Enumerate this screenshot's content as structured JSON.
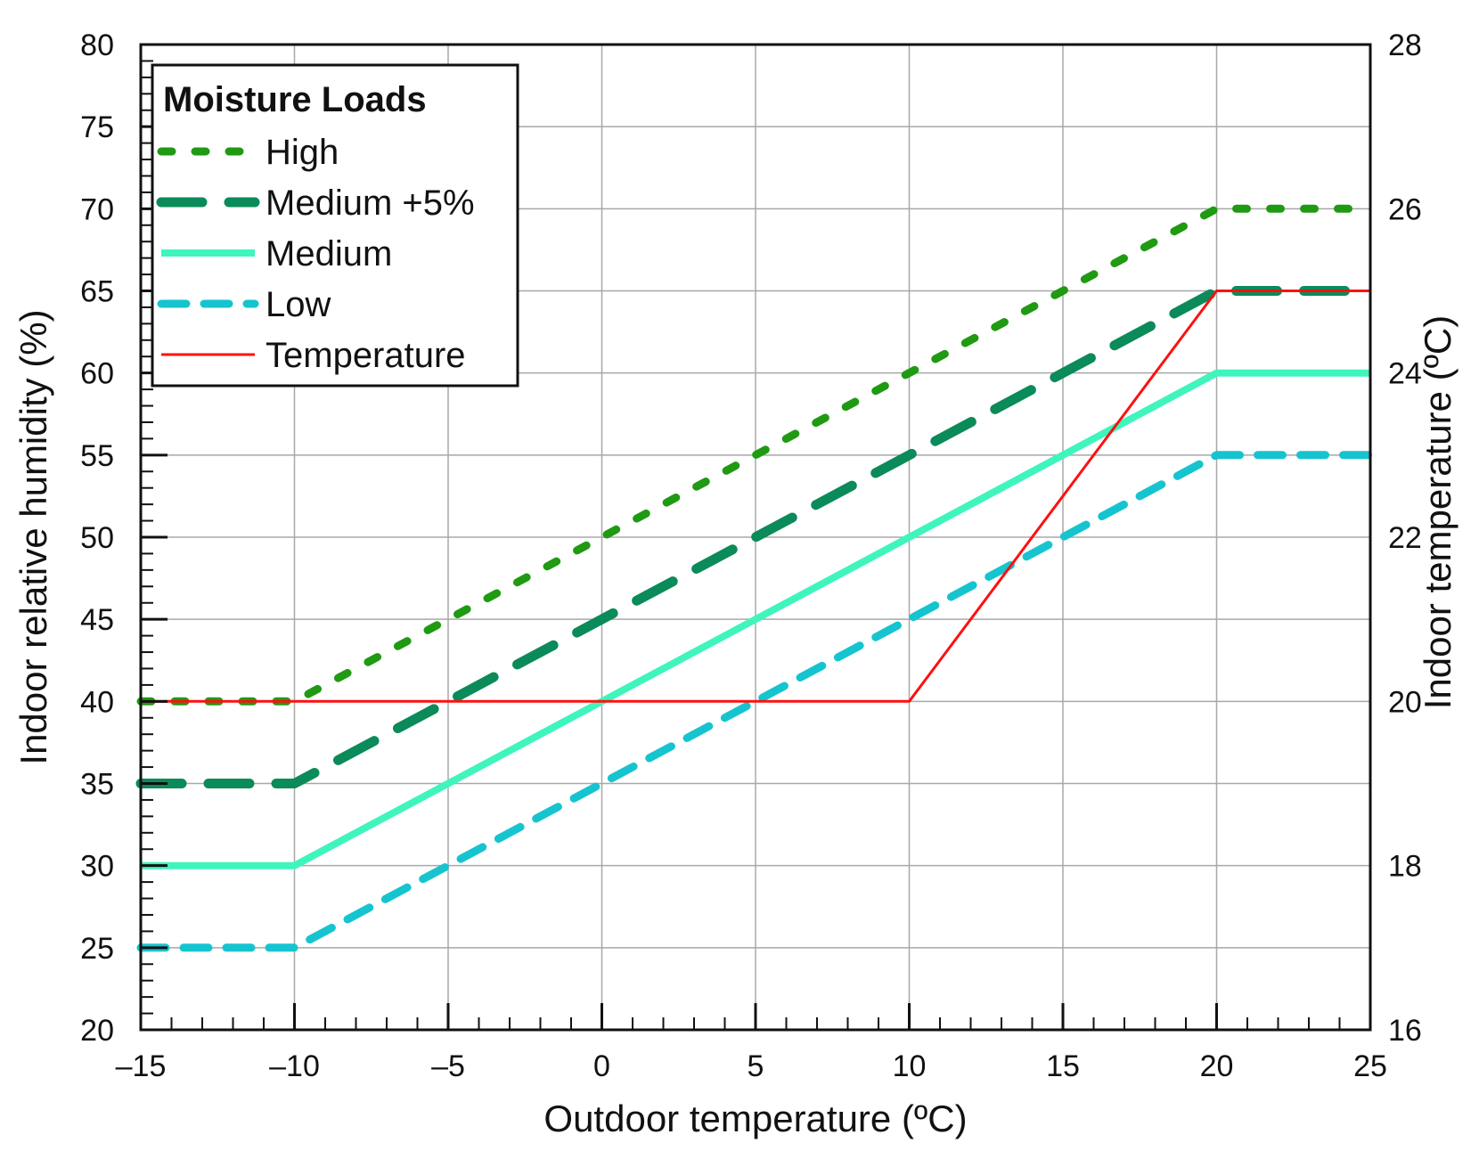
{
  "chart_data": {
    "type": "line",
    "title": "",
    "xlabel": "Outdoor temperature (ºC)",
    "ylabel": "Indoor relative humidity (%)",
    "y2label": "Indoor temperature (ºC)",
    "xlim": [
      -15,
      25
    ],
    "ylim": [
      20,
      80
    ],
    "y2lim": [
      16,
      28
    ],
    "xticks": [
      -15,
      -10,
      -5,
      0,
      5,
      10,
      15,
      20,
      25
    ],
    "xtick_labels": [
      "–15",
      "–10",
      "–5",
      "0",
      "5",
      "10",
      "15",
      "20",
      "25"
    ],
    "yticks": [
      20,
      25,
      30,
      35,
      40,
      45,
      50,
      55,
      60,
      65,
      70,
      75,
      80
    ],
    "ytick_labels": [
      "20",
      "25",
      "30",
      "35",
      "40",
      "45",
      "50",
      "55",
      "60",
      "65",
      "70",
      "75",
      "80"
    ],
    "y2ticks": [
      16,
      18,
      20,
      22,
      24,
      26,
      28
    ],
    "y2tick_labels": [
      "16",
      "18",
      "20",
      "22",
      "24",
      "26",
      "28"
    ],
    "grid": true,
    "legend": {
      "title": "Moisture Loads",
      "position": "top-left"
    },
    "series": [
      {
        "name": "High",
        "axis": "left",
        "color": "#1f9a12",
        "style": "dotted",
        "x": [
          -15,
          -10,
          20,
          25
        ],
        "y": [
          40,
          40,
          70,
          70
        ]
      },
      {
        "name": "Medium +5%",
        "axis": "left",
        "color": "#0b8a5a",
        "style": "long-dash",
        "x": [
          -15,
          -10,
          20,
          25
        ],
        "y": [
          35,
          35,
          65,
          65
        ]
      },
      {
        "name": "Medium",
        "axis": "left",
        "color": "#3ff5bd",
        "style": "solid-thick",
        "x": [
          -15,
          -10,
          20,
          25
        ],
        "y": [
          30,
          30,
          60,
          60
        ]
      },
      {
        "name": "Low",
        "axis": "left",
        "color": "#16c4cf",
        "style": "dashed",
        "x": [
          -15,
          -10,
          20,
          25
        ],
        "y": [
          25,
          25,
          55,
          55
        ]
      },
      {
        "name": "Temperature",
        "axis": "right",
        "color": "#ff1010",
        "style": "solid-thin",
        "x": [
          -15,
          10,
          20,
          25
        ],
        "y": [
          20,
          20,
          25,
          25
        ]
      }
    ]
  }
}
